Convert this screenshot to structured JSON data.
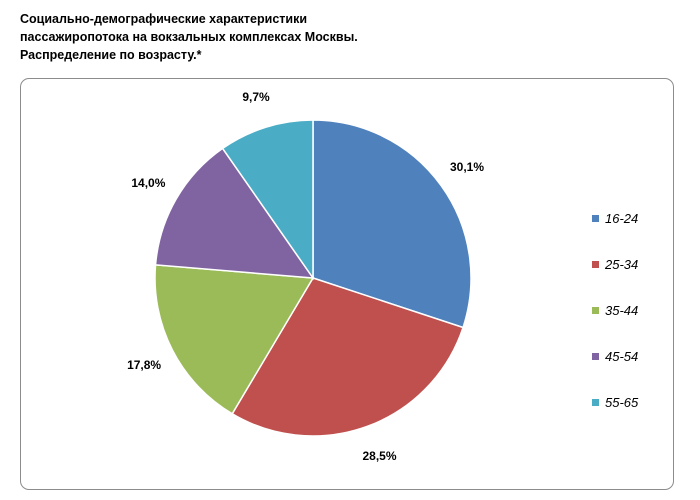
{
  "chart_data": {
    "type": "pie",
    "title_lines": [
      "Социально-демографические характеристики",
      "пассажиропотока на вокзальных комплексах Москвы.",
      "Распределение по возрасту.*"
    ],
    "legend_position": "right",
    "slices": [
      {
        "label": "16-24",
        "value": 30.1,
        "display": "30,1%",
        "color": "#4F81BD"
      },
      {
        "label": "25-34",
        "value": 28.5,
        "display": "28,5%",
        "color": "#C0504D"
      },
      {
        "label": "35-44",
        "value": 17.8,
        "display": "17,8%",
        "color": "#9BBB59"
      },
      {
        "label": "45-54",
        "value": 14.0,
        "display": "14,0%",
        "color": "#8064A2"
      },
      {
        "label": "55-65",
        "value": 9.7,
        "display": "9,7%",
        "color": "#4BACC6"
      }
    ]
  }
}
